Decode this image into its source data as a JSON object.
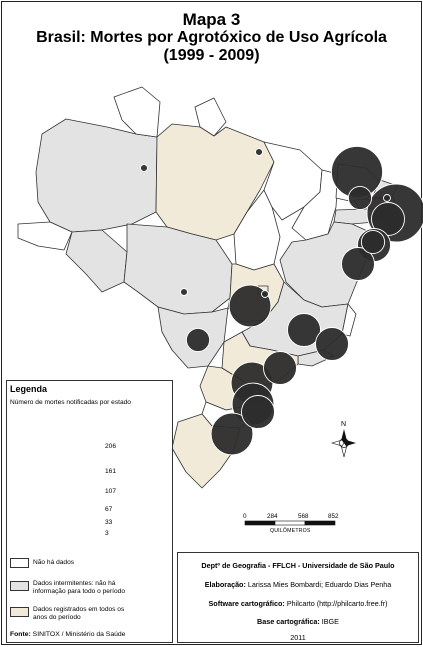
{
  "title": {
    "line1": "Mapa 3",
    "line2": "Brasil: Mortes por Agrotóxico de Uso Agrícola",
    "line3": "(1999 - 2009)"
  },
  "legend": {
    "title": "Legenda",
    "subtitle": "Número de mortes notificadas por estado",
    "proportional_values": [
      "206",
      "161",
      "107",
      "67",
      "33",
      "3"
    ],
    "categories": [
      {
        "label": "Não há dados",
        "color": "#ffffff"
      },
      {
        "label": "Dados intermitentes: não há informação para todo o período",
        "color": "#e3e3e3"
      },
      {
        "label": "Dados registrados em todos os anos do período",
        "color": "#f2ead8"
      }
    ],
    "source_label": "Fonte:",
    "source_text": "SINITOX / Ministério da Saúde"
  },
  "scale_bar": {
    "ticks": [
      "0",
      "284",
      "568",
      "852"
    ],
    "unit": "QUILÔMETROS"
  },
  "north_arrow": {
    "label": "N"
  },
  "credits": {
    "department": "Deptº de Geografia - FFLCH - Universidade de São Paulo",
    "elaboration_label": "Elaboração:",
    "elaboration_text": "Larissa Mies Bombardi; Eduardo Dias Penha",
    "software_label": "Software cartográfico:",
    "software_text": "Philcarto (http://philcarto.free.fr)",
    "basemap_label": "Base cartográfica:",
    "basemap_text": "IBGE",
    "year": "2011"
  },
  "colors": {
    "no_data": "#ffffff",
    "intermittent": "#e3e3e3",
    "complete": "#f2ead8",
    "circle_fill": "#2c2c2c",
    "border": "#333333"
  },
  "state_deaths": {
    "AM": 3,
    "PA": 3,
    "RO": 3,
    "MS": 33,
    "MA": 161,
    "PI": 33,
    "RN": 3,
    "PB": 206,
    "PE": 67,
    "AL": 67,
    "SE": 33,
    "BA": 67,
    "GO": 107,
    "DF": 3,
    "MG": 67,
    "ES": 67,
    "RJ": 67,
    "SP": 107,
    "PR": 107,
    "SC": 67,
    "RS": 107
  }
}
